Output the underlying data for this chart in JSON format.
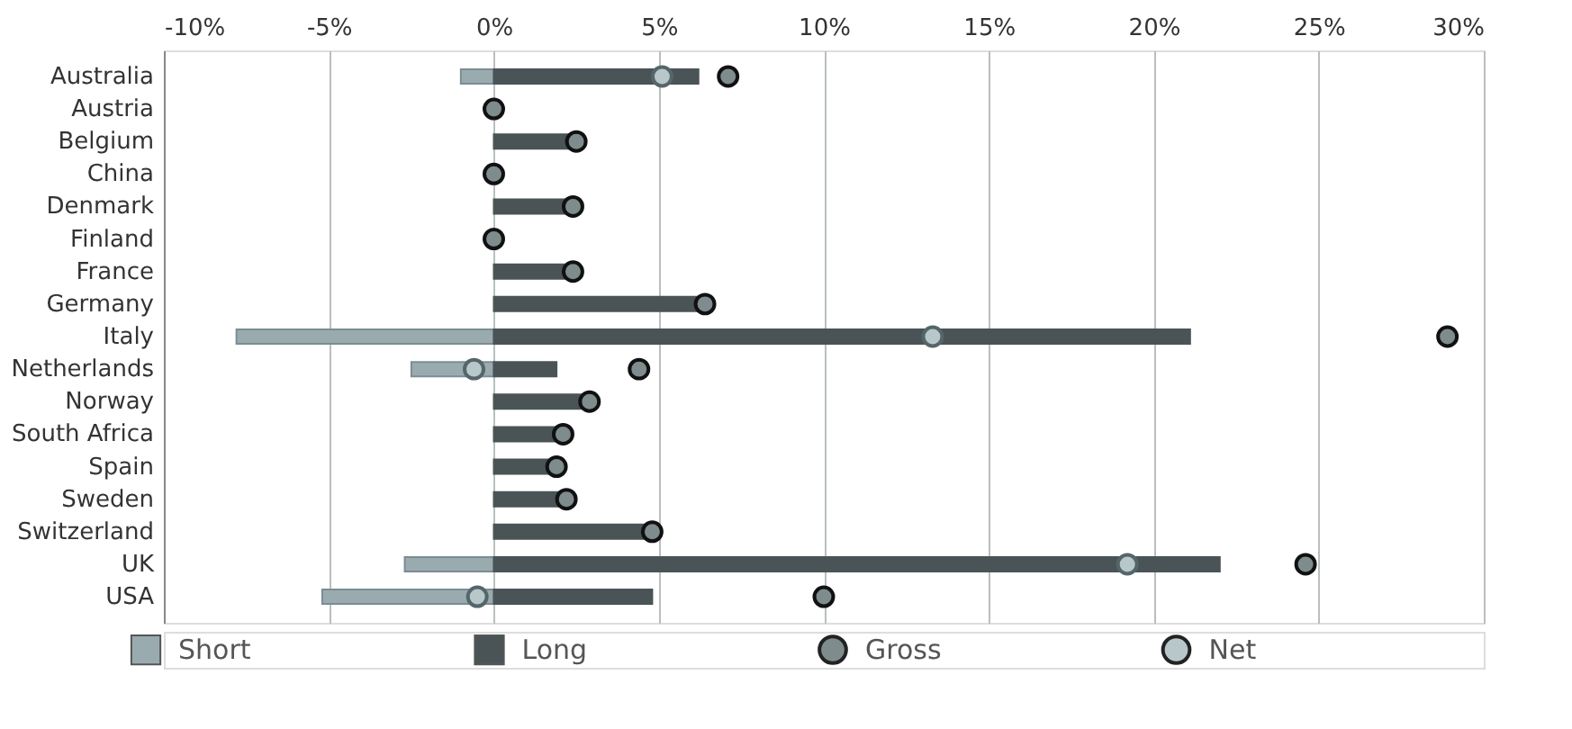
{
  "chart_data": {
    "type": "bar",
    "orientation": "horizontal",
    "categories": [
      "Australia",
      "Austria",
      "Belgium",
      "China",
      "Denmark",
      "Finland",
      "France",
      "Germany",
      "Italy",
      "Netherlands",
      "Norway",
      "South Africa",
      "Spain",
      "Sweden",
      "Switzerland",
      "UK",
      "USA"
    ],
    "series": [
      {
        "name": "Short",
        "color": "#9aabb0",
        "values": [
          -1.0,
          null,
          null,
          null,
          null,
          null,
          null,
          null,
          -7.8,
          -2.5,
          null,
          null,
          null,
          null,
          null,
          -2.7,
          -5.2
        ]
      },
      {
        "name": "Long",
        "color": "#4a5456",
        "values": [
          6.2,
          0,
          2.5,
          0,
          2.4,
          0,
          2.4,
          6.4,
          21.1,
          1.9,
          2.9,
          2.1,
          1.9,
          2.2,
          4.8,
          22.0,
          4.8
        ]
      },
      {
        "name": "Gross",
        "type": "scatter",
        "color": "#7f8c8d",
        "values": [
          7.1,
          0,
          2.5,
          0,
          2.4,
          0,
          2.4,
          6.4,
          28.9,
          4.4,
          2.9,
          2.1,
          1.9,
          2.2,
          4.8,
          24.6,
          10.0
        ]
      },
      {
        "name": "Net",
        "type": "scatter",
        "color": "#b8c7ca",
        "values": [
          5.1,
          null,
          null,
          null,
          null,
          null,
          null,
          null,
          13.3,
          -0.6,
          null,
          null,
          null,
          null,
          null,
          19.2,
          -0.5
        ]
      }
    ],
    "xlim": [
      -10,
      30
    ],
    "xticks": [
      {
        "value": -10,
        "label": "-10%"
      },
      {
        "value": -5,
        "label": "-5%"
      },
      {
        "value": 0,
        "label": "0%"
      },
      {
        "value": 5,
        "label": "5%"
      },
      {
        "value": 10,
        "label": "10%"
      },
      {
        "value": 15,
        "label": "15%"
      },
      {
        "value": 20,
        "label": "20%"
      },
      {
        "value": 25,
        "label": "25%"
      },
      {
        "value": 30,
        "label": "30%"
      }
    ],
    "grid": "x",
    "legend": "bottom",
    "marker": "circle"
  }
}
